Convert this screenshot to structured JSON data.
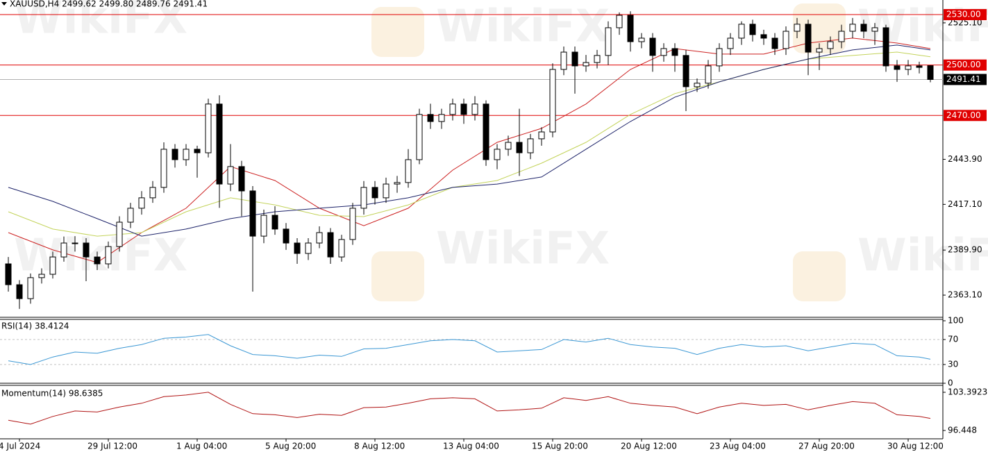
{
  "watermark": "WikiFX",
  "chart_data": [
    {
      "type": "candlestick",
      "header": "XAUUSD,H4  2499.62 2499.80 2489.76 2491.41",
      "categories": [
        null,
        "4 Jul 2024",
        null,
        null,
        null,
        null,
        null,
        null,
        null,
        "29 Jul 12:00",
        null,
        null,
        null,
        null,
        null,
        null,
        null,
        "1 Aug 04:00",
        null,
        null,
        null,
        null,
        null,
        null,
        null,
        "5 Aug 20:00",
        null,
        null,
        null,
        null,
        null,
        null,
        null,
        "8 Aug 12:00",
        null,
        null,
        null,
        null,
        null,
        null,
        null,
        "13 Aug 04:00",
        null,
        null,
        null,
        null,
        null,
        null,
        null,
        "15 Aug 20:00",
        null,
        null,
        null,
        null,
        null,
        null,
        null,
        "20 Aug 12:00",
        null,
        null,
        null,
        null,
        null,
        null,
        null,
        "23 Aug 04:00",
        null,
        null,
        null,
        null,
        null,
        null,
        null,
        "27 Aug 20:00",
        null,
        null,
        null,
        null,
        null,
        null,
        null,
        "30 Aug 12:00",
        null,
        null
      ],
      "open": [
        2381.7,
        2369.3,
        2361,
        2373.5,
        2375.5,
        2385.8,
        2394.1,
        2394.1,
        2385.8,
        2381.7,
        2392,
        2406.5,
        2414.8,
        2421,
        2427.2,
        2449.9,
        2443.7,
        2449.9,
        2447.8,
        2476.8,
        2429.2,
        2439.6,
        2425.1,
        2398.2,
        2410.6,
        2402.4,
        2394.1,
        2387.9,
        2394.1,
        2400.3,
        2385.8,
        2396.2,
        2414.8,
        2427.2,
        2421,
        2429.2,
        2430.1,
        2443.7,
        2470.6,
        2466.4,
        2470.6,
        2476.8,
        2470.6,
        2476.8,
        2443.7,
        2449.9,
        2454,
        2447.8,
        2456.1,
        2460.2,
        2497.4,
        2507.7,
        2499.5,
        2501.5,
        2505.7,
        2522.2,
        2529.6,
        2513.9,
        2516,
        2505.7,
        2509.8,
        2505.7,
        2487.1,
        2489.2,
        2499.5,
        2509.8,
        2516,
        2524.3,
        2518.1,
        2516,
        2509.8,
        2520.1,
        2524.3,
        2507.7,
        2509.8,
        2513.9,
        2520.1,
        2524.3,
        2520.1,
        2522.2,
        2499.5,
        2497.4,
        2499.5,
        2499.62
      ],
      "high": [
        2385.8,
        2372,
        2376,
        2379,
        2389,
        2398,
        2398.2,
        2397,
        2389,
        2395,
        2410,
        2418,
        2425,
        2431,
        2454,
        2453,
        2453,
        2452,
        2480,
        2482,
        2453,
        2443,
        2428,
        2414,
        2416,
        2406,
        2397,
        2397,
        2404,
        2403,
        2399,
        2418,
        2431,
        2431,
        2433,
        2434,
        2450,
        2474,
        2477,
        2474,
        2480,
        2480,
        2481.5,
        2479,
        2453,
        2458,
        2474,
        2459,
        2463,
        2501,
        2511,
        2511,
        2506,
        2509,
        2526,
        2531.3,
        2532,
        2519,
        2519,
        2513,
        2513,
        2509,
        2492,
        2503,
        2513,
        2519,
        2526,
        2527,
        2521,
        2519,
        2523,
        2528,
        2527,
        2513,
        2517,
        2524,
        2528,
        2527,
        2525,
        2524,
        2503,
        2503,
        2502,
        2499.8
      ],
      "low": [
        2365.2,
        2354.9,
        2358,
        2370,
        2373,
        2383,
        2389,
        2371.4,
        2378,
        2379,
        2389,
        2403,
        2411,
        2418,
        2424,
        2439,
        2440,
        2433,
        2445,
        2415,
        2425,
        2410,
        2365.2,
        2394,
        2399,
        2390,
        2381.7,
        2384,
        2391,
        2381.7,
        2383,
        2393,
        2411,
        2417,
        2418,
        2424,
        2427,
        2441,
        2462,
        2462,
        2467,
        2465,
        2467,
        2440,
        2438,
        2446,
        2434,
        2444,
        2452,
        2457,
        2494,
        2483,
        2496,
        2498,
        2500,
        2518,
        2508,
        2510,
        2496,
        2502,
        2496,
        2472.6,
        2484,
        2486,
        2496,
        2506,
        2512,
        2514,
        2512,
        2506,
        2506,
        2516,
        2494,
        2497,
        2506,
        2510,
        2516,
        2516,
        2512,
        2496,
        2490,
        2494,
        2495,
        2489.76
      ],
      "close": [
        2369.3,
        2361,
        2373.5,
        2375.5,
        2385.8,
        2394.1,
        2394.1,
        2385.8,
        2381.7,
        2392,
        2406.5,
        2414.8,
        2421,
        2427.2,
        2449.9,
        2443.7,
        2449.9,
        2447.8,
        2476.8,
        2429.2,
        2439.6,
        2425.1,
        2398.2,
        2410.6,
        2402.4,
        2394.1,
        2387.9,
        2394.1,
        2400.3,
        2385.8,
        2396.2,
        2414.8,
        2427.2,
        2421,
        2429.2,
        2430.1,
        2443.7,
        2470.6,
        2466.4,
        2470.6,
        2476.8,
        2470.6,
        2476.8,
        2443.7,
        2449.9,
        2454,
        2447.8,
        2456.1,
        2460.2,
        2497.4,
        2507.7,
        2499.5,
        2501.5,
        2505.7,
        2522.2,
        2529.6,
        2513.9,
        2516,
        2505.7,
        2509.8,
        2505.7,
        2487.1,
        2489.2,
        2499.5,
        2509.8,
        2516,
        2524.3,
        2518.1,
        2516,
        2509.8,
        2520.1,
        2524.3,
        2507.7,
        2509.8,
        2513.9,
        2520.1,
        2524.3,
        2520.1,
        2522.2,
        2499.5,
        2497.4,
        2499.5,
        2498.6,
        2491.41
      ],
      "bull_color": "#ffffff",
      "bear_color": "#000000",
      "ylim": [
        2349.9,
        2538.7
      ],
      "yticks": [
        {
          "value": 2525.1,
          "label": "2525.10"
        },
        {
          "value": 2443.9,
          "label": "2443.90"
        },
        {
          "value": 2417.1,
          "label": "2417.10"
        },
        {
          "value": 2389.9,
          "label": "2389.90"
        },
        {
          "value": 2363.1,
          "label": "2363.10"
        }
      ],
      "levels": [
        {
          "value": 2530,
          "label": "2530.00"
        },
        {
          "value": 2500,
          "label": "2500.00"
        },
        {
          "value": 2470,
          "label": "2470.00"
        }
      ],
      "level_color": "#e00000",
      "last_price": {
        "value": 2491.41,
        "label": "2491.41"
      },
      "overlays": [
        {
          "color": "#cc1f1f",
          "x": [
            0,
            4,
            8,
            12,
            16,
            20,
            24,
            28,
            32,
            36,
            40,
            44,
            48,
            52,
            56,
            60,
            64,
            68,
            72,
            76,
            80,
            83
          ],
          "values": [
            2400.3,
            2390,
            2382.5,
            2400.3,
            2414.8,
            2439.6,
            2431.3,
            2414.8,
            2404.4,
            2414.8,
            2437.5,
            2454,
            2462.3,
            2476.8,
            2497.4,
            2509.8,
            2506.5,
            2506.5,
            2513.1,
            2516,
            2513.1,
            2509.8
          ]
        },
        {
          "color": "#c3d35a",
          "x": [
            0,
            4,
            8,
            12,
            16,
            20,
            24,
            28,
            32,
            36,
            40,
            44,
            48,
            52,
            56,
            60,
            64,
            68,
            72,
            76,
            80,
            83
          ],
          "values": [
            2412.7,
            2402.4,
            2398.2,
            2400.3,
            2412.7,
            2421,
            2416.8,
            2410.6,
            2409.8,
            2416.8,
            2427.2,
            2431.3,
            2441.6,
            2454,
            2470.6,
            2483,
            2490,
            2497.4,
            2503.6,
            2505.7,
            2507.7,
            2504.9
          ]
        },
        {
          "color": "#1b2168",
          "x": [
            0,
            4,
            8,
            12,
            16,
            20,
            24,
            28,
            32,
            36,
            40,
            44,
            48,
            52,
            56,
            60,
            64,
            68,
            72,
            76,
            80,
            83
          ],
          "values": [
            2427.2,
            2418.9,
            2408.6,
            2398.2,
            2402.4,
            2408.6,
            2412.7,
            2414.8,
            2416.8,
            2421,
            2427.2,
            2429.2,
            2433.4,
            2449.9,
            2466.4,
            2480.9,
            2490,
            2497.4,
            2503.6,
            2509,
            2511.9,
            2509
          ]
        }
      ]
    },
    {
      "type": "line",
      "title": "RSI(14) 38.4124",
      "color": "#3a97d4",
      "x": [
        0,
        2,
        4,
        6,
        8,
        10,
        12,
        14,
        16,
        18,
        20,
        22,
        24,
        26,
        28,
        30,
        32,
        34,
        36,
        38,
        40,
        42,
        44,
        46,
        48,
        50,
        52,
        54,
        56,
        58,
        60,
        62,
        64,
        66,
        68,
        70,
        72,
        74,
        76,
        78,
        80,
        82,
        83
      ],
      "values": [
        36,
        30,
        42,
        50,
        48,
        56,
        62,
        72,
        74,
        78,
        60,
        46,
        44,
        40,
        45,
        43,
        55,
        56,
        62,
        68,
        70,
        68,
        50,
        52,
        54,
        70,
        66,
        72,
        62,
        58,
        56,
        46,
        56,
        62,
        58,
        60,
        52,
        58,
        64,
        62,
        44,
        42,
        38.4124
      ],
      "ylim": [
        0,
        100
      ],
      "yticks": [
        100,
        70,
        30,
        0
      ],
      "levels": [
        70,
        30
      ]
    },
    {
      "type": "line",
      "title": "Momentum(14) 98.6385",
      "color": "#b01212",
      "x": [
        0,
        2,
        4,
        6,
        8,
        10,
        12,
        14,
        16,
        18,
        20,
        22,
        24,
        26,
        28,
        30,
        32,
        34,
        36,
        38,
        40,
        42,
        44,
        46,
        48,
        50,
        52,
        54,
        56,
        58,
        60,
        62,
        64,
        66,
        68,
        70,
        72,
        74,
        76,
        78,
        80,
        82,
        83
      ],
      "values": [
        98.3,
        97.6,
        99,
        100,
        99.8,
        100.7,
        101.4,
        102.6,
        102.9,
        103.4,
        101.2,
        99.5,
        99.3,
        98.8,
        99.4,
        99.2,
        100.6,
        100.7,
        101.4,
        102.2,
        102.4,
        102.2,
        100,
        100.2,
        100.5,
        102.4,
        101.9,
        102.6,
        101.4,
        101,
        100.7,
        99.5,
        100.7,
        101.4,
        101,
        101.2,
        100.2,
        101,
        101.7,
        101.4,
        99.3,
        99,
        98.6385
      ],
      "ylim": [
        94.93,
        104.53
      ],
      "yticks": [
        103.3923,
        96.448
      ]
    }
  ]
}
